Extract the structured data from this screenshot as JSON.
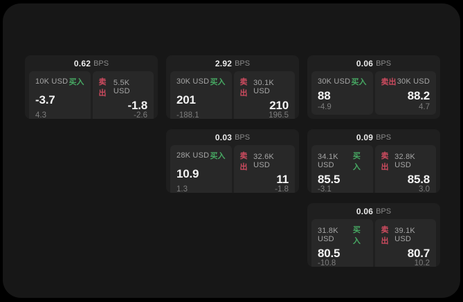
{
  "page": {
    "background": "#000000",
    "panel_background": "#171717",
    "card_background": "#1f1f1f",
    "tile_background": "#282828"
  },
  "colors": {
    "buy": "#47a963",
    "sell": "#cd4b5f",
    "value_text": "#f3f3f3",
    "label_text": "#a6a6a6",
    "delta_text": "#7d7d7d"
  },
  "labels": {
    "bps": "BPS",
    "buy": "买入",
    "sell": "卖出"
  },
  "cards": [
    {
      "row": 1,
      "col": 1,
      "bps": "0.62",
      "buy": {
        "amount": "10K USD",
        "value": "-3.7",
        "delta": "4.3"
      },
      "sell": {
        "amount": "5.5K USD",
        "value": "-1.8",
        "delta": "-2.6"
      }
    },
    {
      "row": 1,
      "col": 2,
      "bps": "2.92",
      "buy": {
        "amount": "30K USD",
        "value": "201",
        "delta": "-188.1"
      },
      "sell": {
        "amount": "30.1K USD",
        "value": "210",
        "delta": "196.5"
      }
    },
    {
      "row": 1,
      "col": 3,
      "bps": "0.06",
      "buy": {
        "amount": "30K USD",
        "value": "88",
        "delta": "-4.9"
      },
      "sell": {
        "amount": "30K USD",
        "value": "88.2",
        "delta": "4.7"
      }
    },
    {
      "row": 2,
      "col": 2,
      "bps": "0.03",
      "buy": {
        "amount": "28K USD",
        "value": "10.9",
        "delta": "1.3"
      },
      "sell": {
        "amount": "32.6K USD",
        "value": "11",
        "delta": "-1.8"
      }
    },
    {
      "row": 2,
      "col": 3,
      "bps": "0.09",
      "buy": {
        "amount": "34.1K USD",
        "value": "85.5",
        "delta": "-3.1"
      },
      "sell": {
        "amount": "32.8K USD",
        "value": "85.8",
        "delta": "3.0"
      }
    },
    {
      "row": 3,
      "col": 3,
      "bps": "0.06",
      "buy": {
        "amount": "31.8K USD",
        "value": "80.5",
        "delta": "-10.8"
      },
      "sell": {
        "amount": "39.1K USD",
        "value": "80.7",
        "delta": "10.2"
      }
    }
  ]
}
